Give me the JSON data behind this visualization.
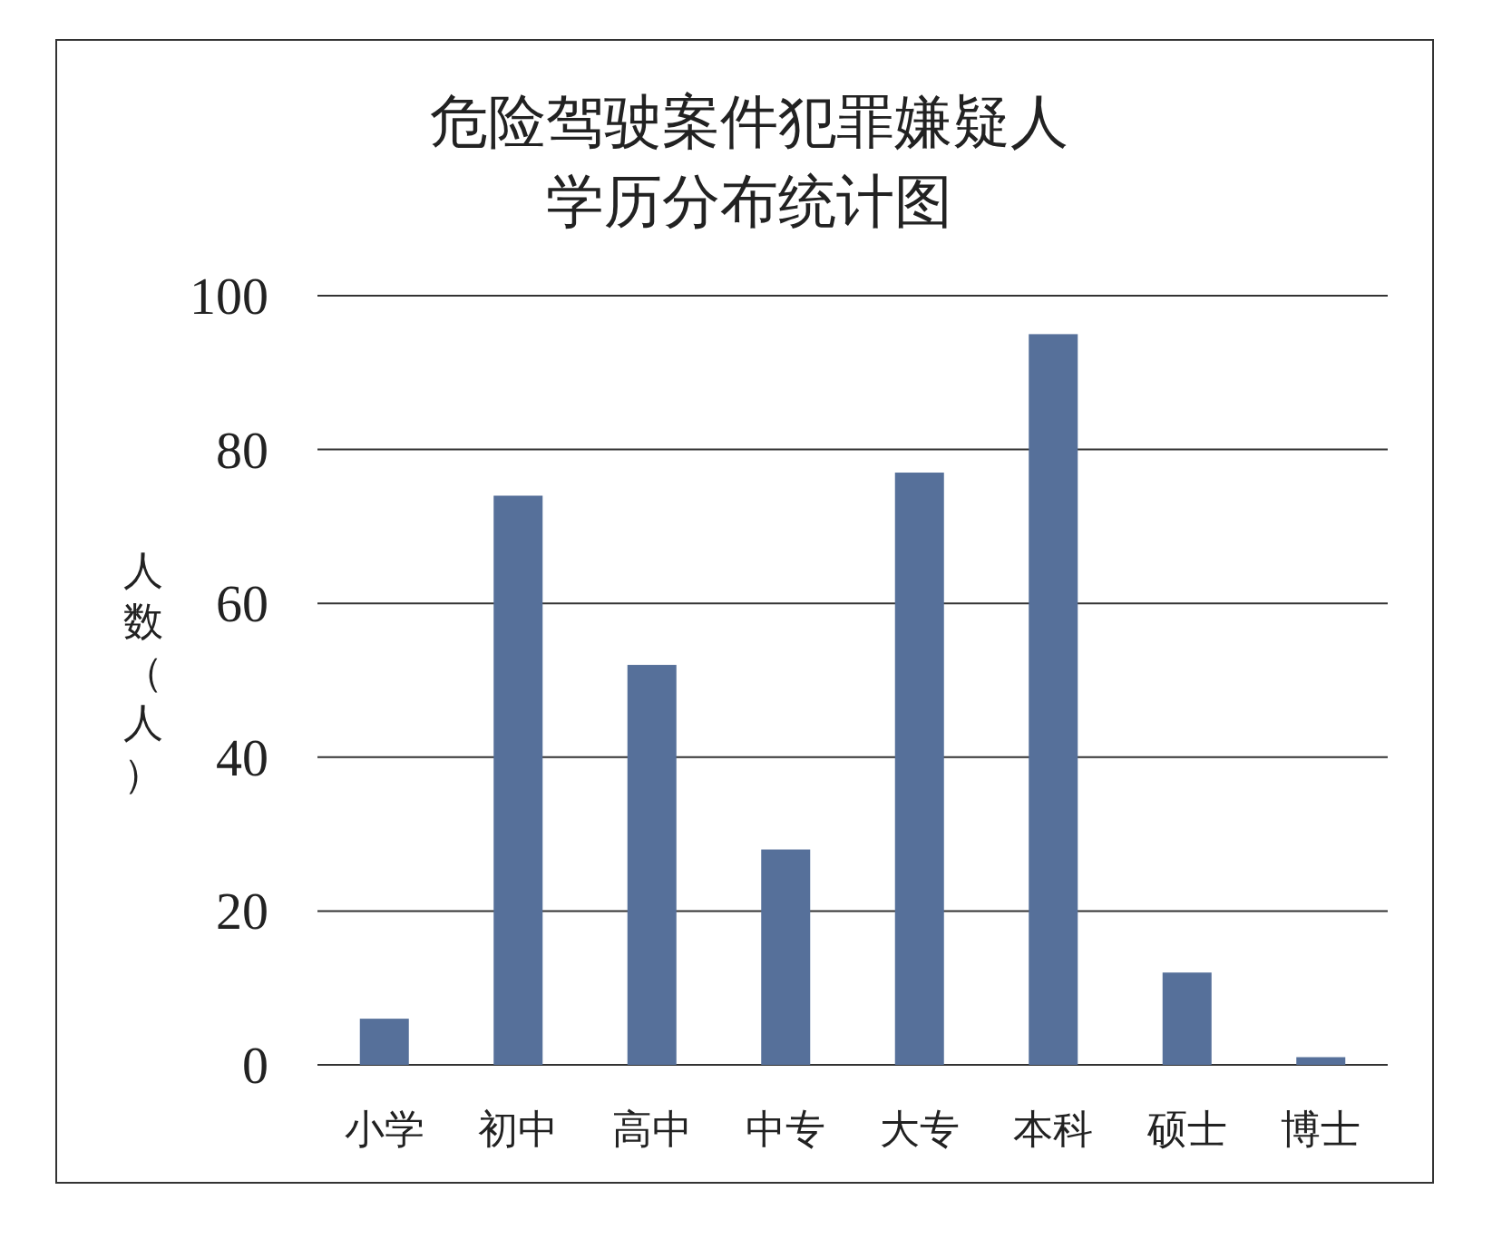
{
  "chart_data": {
    "type": "bar",
    "title": "危险驾驶案件犯罪嫌疑人",
    "subtitle": "学历分布统计图",
    "ylabel": "人数（人）",
    "categories": [
      "小学",
      "初中",
      "高中",
      "中专",
      "大专",
      "本科",
      "硕士",
      "博士"
    ],
    "values": [
      6,
      74,
      52,
      28,
      77,
      95,
      12,
      1
    ],
    "color": "#56709a",
    "ylim": [
      0,
      100
    ],
    "yticks": [
      0,
      20,
      40,
      60,
      80,
      100
    ],
    "grid": "y"
  }
}
